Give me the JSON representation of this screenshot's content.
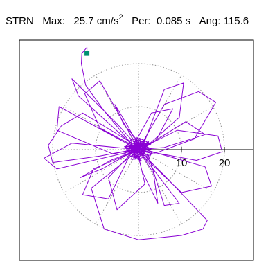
{
  "header": {
    "station": "STRN",
    "max_label": "Max:",
    "max_value": "25.7",
    "max_unit": "cm/s",
    "max_unit_exp": "2",
    "per_label": "Per:",
    "per_value": "0.085 s",
    "ang_label": "Ang:",
    "ang_value": "115.6"
  },
  "chart_data": {
    "type": "scatter",
    "title": "",
    "xlabel": "",
    "ylabel": "",
    "polar": true,
    "rings": [
      10,
      20
    ],
    "tick_labels": [
      "10",
      "20"
    ],
    "xlim": [
      -27,
      27
    ],
    "ylim": [
      -27,
      27
    ],
    "grid": true,
    "colors": {
      "trace": "#8a00d4",
      "start_marker": "#009170",
      "grid": "#909090"
    },
    "start_point": {
      "x": -12.0,
      "y": 22.4
    },
    "trace": [
      [
        -12.0,
        22.4
      ],
      [
        -12.0,
        23.8
      ],
      [
        -13.2,
        22.4
      ],
      [
        -13.3,
        20.0
      ],
      [
        -12.3,
        15.0
      ],
      [
        -8.0,
        9.0
      ],
      [
        -3.0,
        3.0
      ],
      [
        -1.0,
        0.5
      ],
      [
        0.0,
        0.0
      ],
      [
        6.0,
        10.5
      ],
      [
        14.0,
        13.5
      ],
      [
        18.0,
        11.0
      ],
      [
        13.0,
        2.5
      ],
      [
        3.5,
        -1.0
      ],
      [
        0.5,
        -0.3
      ],
      [
        -18.5,
        10.0
      ],
      [
        -19.0,
        4.5
      ],
      [
        -6.0,
        -1.0
      ],
      [
        0.5,
        0.3
      ],
      [
        -11.0,
        -9.0
      ],
      [
        -8.0,
        -18.5
      ],
      [
        0.0,
        -21.0
      ],
      [
        10.0,
        -20.0
      ],
      [
        15.0,
        -18.5
      ],
      [
        16.0,
        -16.5
      ],
      [
        6.0,
        -6.0
      ],
      [
        0.5,
        -0.5
      ],
      [
        6.0,
        14.0
      ],
      [
        10.5,
        15.5
      ],
      [
        9.5,
        7.5
      ],
      [
        1.0,
        0.0
      ],
      [
        -13.0,
        8.5
      ],
      [
        -18.0,
        5.5
      ],
      [
        -21.0,
        1.0
      ],
      [
        -20.0,
        -3.0
      ],
      [
        -9.0,
        -1.5
      ],
      [
        0.0,
        0.2
      ],
      [
        -9.0,
        16.0
      ],
      [
        -12.5,
        13.0
      ],
      [
        -9.0,
        5.0
      ],
      [
        -1.0,
        0.8
      ],
      [
        -7.0,
        -11.5
      ],
      [
        -13.0,
        -10.5
      ],
      [
        -10.5,
        -4.5
      ],
      [
        -1.0,
        -0.5
      ],
      [
        9.0,
        4.5
      ],
      [
        18.5,
        3.2
      ],
      [
        19.5,
        -0.5
      ],
      [
        13.5,
        -2.5
      ],
      [
        2.0,
        -0.4
      ],
      [
        6.0,
        -13.0
      ],
      [
        9.5,
        -12.5
      ],
      [
        3.0,
        -4.0
      ],
      [
        0.0,
        0.0
      ],
      [
        -15.5,
        1.5
      ],
      [
        -22.0,
        -2.0
      ],
      [
        -19.0,
        -4.5
      ],
      [
        -2.0,
        -0.5
      ],
      [
        3.0,
        8.5
      ],
      [
        8.0,
        9.5
      ],
      [
        4.0,
        2.0
      ],
      [
        -0.5,
        0.3
      ],
      [
        -7.0,
        -6.5
      ],
      [
        -5.0,
        -14.0
      ],
      [
        1.5,
        -8.0
      ],
      [
        -0.3,
        -0.2
      ],
      [
        10.0,
        -10.0
      ],
      [
        17.0,
        -8.5
      ],
      [
        15.5,
        -4.0
      ],
      [
        1.5,
        0.0
      ],
      [
        -3.5,
        6.0
      ],
      [
        -5.5,
        10.5
      ],
      [
        -2.5,
        5.5
      ],
      [
        0.2,
        0.4
      ],
      [
        -8.5,
        -4.5
      ],
      [
        -13.5,
        -6.5
      ],
      [
        -6.5,
        -2.5
      ],
      [
        0.0,
        0.0
      ],
      [
        3.5,
        -5.5
      ],
      [
        4.5,
        -12.5
      ],
      [
        0.8,
        -5.0
      ],
      [
        -0.5,
        0.3
      ],
      [
        -14.0,
        12.5
      ],
      [
        -15.5,
        16.5
      ],
      [
        -5.0,
        6.0
      ],
      [
        0.5,
        0.0
      ],
      [
        11.0,
        6.5
      ],
      [
        15.5,
        3.5
      ],
      [
        6.0,
        0.5
      ],
      [
        0.0,
        0.0
      ]
    ]
  }
}
